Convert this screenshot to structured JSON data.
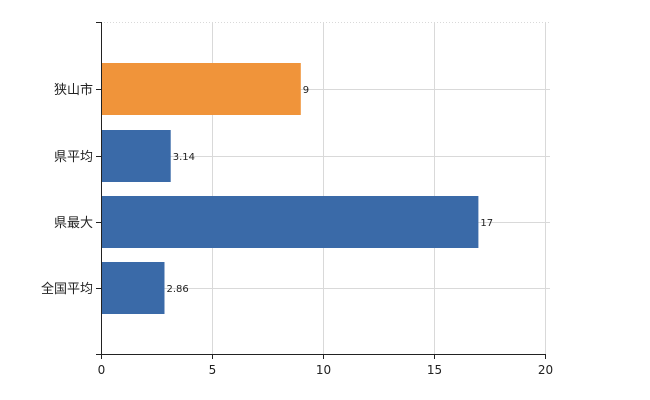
{
  "chart_data": {
    "type": "bar",
    "orientation": "horizontal",
    "categories": [
      "狭山市",
      "県平均",
      "県最大",
      "全国平均"
    ],
    "values": [
      9,
      3.14,
      17,
      2.86
    ],
    "data_labels": [
      "9",
      "3.14",
      "17",
      "2.86"
    ],
    "xlim": [
      0,
      20
    ],
    "x_ticks": [
      0,
      5,
      10,
      15,
      20
    ],
    "x_tick_labels": [
      "0",
      "5",
      "10",
      "15",
      "20"
    ],
    "grid": true,
    "colors": {
      "highlight": "#f0943a",
      "default": "#3a6aa8",
      "grid": "#d9d9d9",
      "axis": "#222222"
    },
    "highlight_index": 0
  }
}
